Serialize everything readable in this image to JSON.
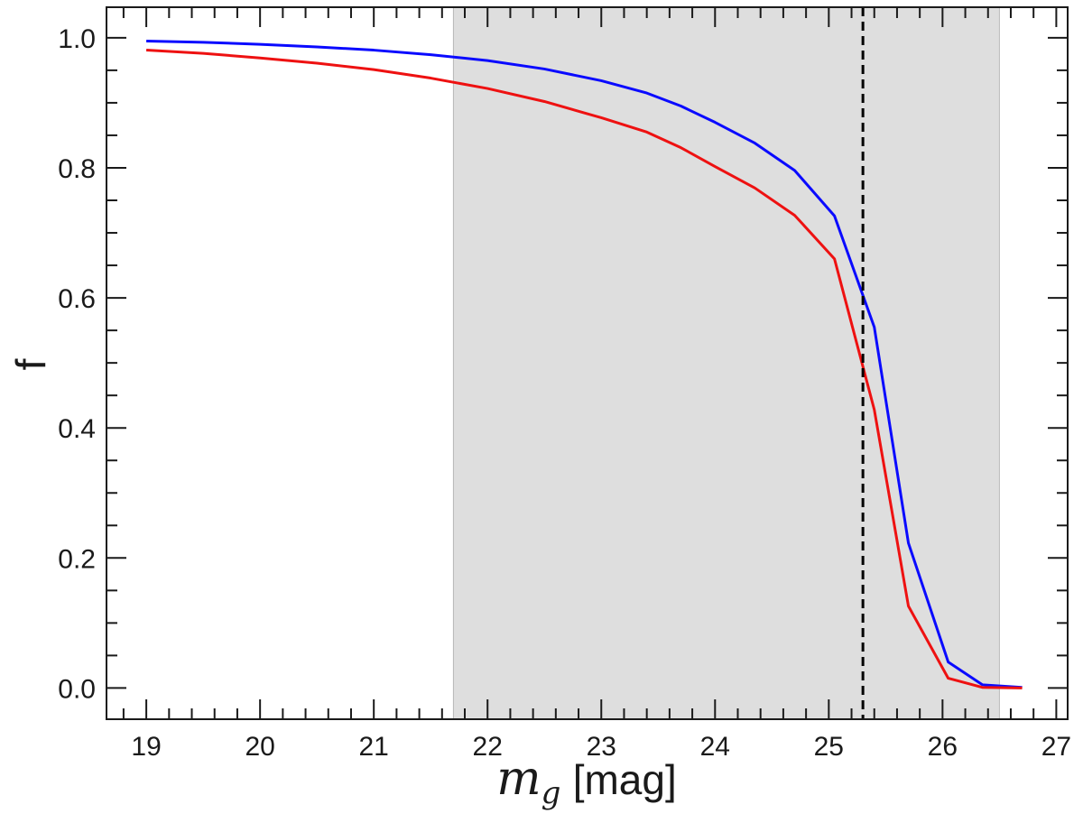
{
  "chart_data": {
    "type": "line",
    "xlabel_symbol": "m",
    "xlabel_subscript": "g",
    "xlabel_unit": "[mag]",
    "ylabel": "f",
    "xlim": [
      18.65,
      27.1
    ],
    "ylim": [
      -0.048,
      1.047
    ],
    "x_ticks": [
      19,
      20,
      21,
      22,
      23,
      24,
      25,
      26,
      27
    ],
    "x_tick_labels": [
      "19",
      "20",
      "21",
      "22",
      "23",
      "24",
      "25",
      "26",
      "27"
    ],
    "x_minor_step": 0.2,
    "y_ticks": [
      0.0,
      0.2,
      0.4,
      0.6,
      0.8,
      1.0
    ],
    "y_tick_labels": [
      "0.0",
      "0.2",
      "0.4",
      "0.6",
      "0.8",
      "1.0"
    ],
    "y_minor_step": 0.05,
    "shaded_region": {
      "x_start": 21.7,
      "x_end": 26.5,
      "color": "#dedede"
    },
    "vertical_line": {
      "x": 25.3,
      "style": "dashed",
      "color": "#000000"
    },
    "grid": false,
    "series": [
      {
        "color": "#0a0aff",
        "x": [
          19.0,
          19.5,
          20.0,
          20.5,
          21.0,
          21.5,
          22.0,
          22.5,
          23.0,
          23.4,
          23.7,
          24.0,
          24.35,
          24.7,
          25.05,
          25.4,
          25.7,
          26.05,
          26.35,
          26.7
        ],
        "y": [
          0.995,
          0.993,
          0.99,
          0.986,
          0.981,
          0.974,
          0.965,
          0.952,
          0.934,
          0.915,
          0.895,
          0.87,
          0.838,
          0.796,
          0.726,
          0.555,
          0.223,
          0.04,
          0.005,
          0.001
        ]
      },
      {
        "color": "#ee1111",
        "x": [
          19.0,
          19.5,
          20.0,
          20.5,
          21.0,
          21.5,
          22.0,
          22.5,
          23.0,
          23.4,
          23.7,
          24.0,
          24.35,
          24.7,
          25.05,
          25.4,
          25.7,
          26.05,
          26.35,
          26.7
        ],
        "y": [
          0.981,
          0.976,
          0.969,
          0.961,
          0.951,
          0.938,
          0.922,
          0.902,
          0.877,
          0.855,
          0.831,
          0.802,
          0.769,
          0.727,
          0.66,
          0.428,
          0.126,
          0.015,
          0.001,
          0.0
        ]
      }
    ]
  }
}
